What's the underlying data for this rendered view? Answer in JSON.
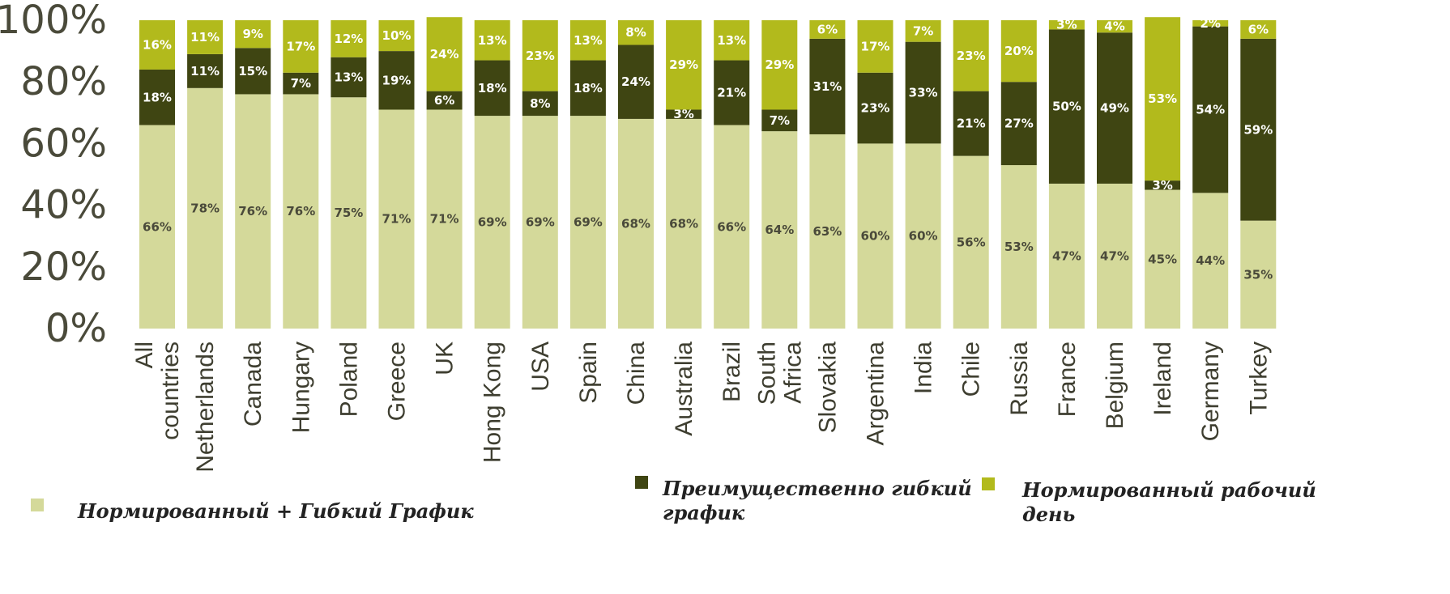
{
  "chart_data": {
    "type": "bar",
    "stacked": true,
    "ylim": [
      0,
      100
    ],
    "yticks": [
      "0%",
      "20%",
      "40%",
      "60%",
      "80%",
      "100%"
    ],
    "grid": false,
    "legend_position": "bottom",
    "categories": [
      [
        "All",
        "countries"
      ],
      [
        "Netherlands"
      ],
      [
        "Canada"
      ],
      [
        "Hungary"
      ],
      [
        "Poland"
      ],
      [
        "Greece"
      ],
      [
        "UK"
      ],
      [
        "Hong Kong"
      ],
      [
        "USA"
      ],
      [
        "Spain"
      ],
      [
        "China"
      ],
      [
        "Australia"
      ],
      [
        "Brazil"
      ],
      [
        "South",
        "Africa"
      ],
      [
        "Slovakia"
      ],
      [
        "Argentina"
      ],
      [
        "India"
      ],
      [
        "Chile"
      ],
      [
        "Russia"
      ],
      [
        "France"
      ],
      [
        "Belgium"
      ],
      [
        "Ireland"
      ],
      [
        "Germany"
      ],
      [
        "Turkey"
      ]
    ],
    "series": [
      {
        "name": "Нормированный + Гибкий График",
        "color": "#d4d99a",
        "label_color": "#4a4a3a",
        "values": [
          66,
          78,
          76,
          76,
          75,
          71,
          71,
          69,
          69,
          69,
          68,
          68,
          66,
          64,
          63,
          60,
          60,
          56,
          53,
          47,
          47,
          45,
          44,
          35
        ]
      },
      {
        "name": "Преимущественно гибкий график",
        "color": "#3f4512",
        "label_color": "#ffffff",
        "values": [
          18,
          11,
          15,
          7,
          13,
          19,
          6,
          18,
          8,
          18,
          24,
          3,
          21,
          7,
          31,
          23,
          33,
          21,
          27,
          50,
          49,
          3,
          54,
          59
        ]
      },
      {
        "name": "Нормированный рабочий день",
        "color": "#b2ba1c",
        "label_color": "#ffffff",
        "values": [
          16,
          11,
          9,
          17,
          12,
          10,
          24,
          13,
          23,
          13,
          8,
          29,
          13,
          29,
          6,
          17,
          7,
          23,
          20,
          3,
          4,
          53,
          2,
          6
        ]
      }
    ],
    "legend": [
      {
        "lines": [
          "Нормированный + Гибкий График"
        ],
        "color": "#d4d99a"
      },
      {
        "lines": [
          "Преимущественно гибкий",
          "график"
        ],
        "color": "#3f4512"
      },
      {
        "lines": [
          "Нормированный рабочий",
          "день"
        ],
        "color": "#b2ba1c"
      }
    ]
  }
}
